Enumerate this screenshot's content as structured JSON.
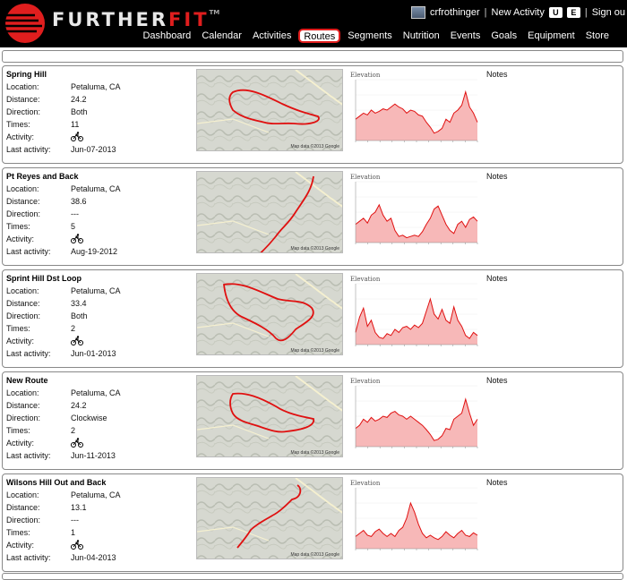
{
  "brand": {
    "part1": "FURTHER",
    "part2": "FIT",
    "tm": "TM"
  },
  "user": {
    "name": "crfrothinger",
    "new_activity": "New Activity",
    "key_u": "U",
    "key_e": "E",
    "sign_out": "Sign ou"
  },
  "nav": [
    {
      "label": "Dashboard",
      "active": false
    },
    {
      "label": "Calendar",
      "active": false
    },
    {
      "label": "Activities",
      "active": false
    },
    {
      "label": "Routes",
      "active": true
    },
    {
      "label": "Segments",
      "active": false
    },
    {
      "label": "Nutrition",
      "active": false
    },
    {
      "label": "Events",
      "active": false
    },
    {
      "label": "Goals",
      "active": false
    },
    {
      "label": "Equipment",
      "active": false
    },
    {
      "label": "Store",
      "active": false
    }
  ],
  "labels": {
    "location": "Location:",
    "distance": "Distance:",
    "direction": "Direction:",
    "times": "Times:",
    "activity": "Activity:",
    "last_activity": "Last activity:",
    "notes": "Notes",
    "elevation": "Elevation",
    "map_credit": "Map data ©2013 Google"
  },
  "routes": [
    {
      "name": "Spring Hill",
      "location": "Petaluma, CA",
      "distance": "24.2",
      "direction": "Both",
      "times": "11",
      "activity_icon": "bicycle-icon",
      "last_activity": "Jun-07-2013",
      "elevation": [
        0.35,
        0.4,
        0.45,
        0.42,
        0.5,
        0.45,
        0.48,
        0.52,
        0.5,
        0.55,
        0.6,
        0.55,
        0.52,
        0.45,
        0.5,
        0.48,
        0.42,
        0.4,
        0.3,
        0.22,
        0.12,
        0.15,
        0.2,
        0.35,
        0.3,
        0.45,
        0.5,
        0.58,
        0.8,
        0.55,
        0.45,
        0.3
      ]
    },
    {
      "name": "Pt Reyes and Back",
      "location": "Petaluma, CA",
      "distance": "38.6",
      "direction": "---",
      "times": "5",
      "activity_icon": "bicycle-icon",
      "last_activity": "Aug-19-2012",
      "elevation": [
        0.3,
        0.35,
        0.4,
        0.32,
        0.45,
        0.5,
        0.62,
        0.45,
        0.35,
        0.4,
        0.2,
        0.1,
        0.12,
        0.08,
        0.1,
        0.12,
        0.1,
        0.18,
        0.3,
        0.4,
        0.55,
        0.6,
        0.45,
        0.3,
        0.2,
        0.15,
        0.3,
        0.35,
        0.25,
        0.38,
        0.42,
        0.35
      ]
    },
    {
      "name": "Sprint Hill Dst Loop",
      "location": "Petaluma, CA",
      "distance": "33.4",
      "direction": "Both",
      "times": "2",
      "activity_icon": "bicycle-icon",
      "last_activity": "Jun-01-2013",
      "elevation": [
        0.2,
        0.45,
        0.6,
        0.3,
        0.4,
        0.2,
        0.12,
        0.1,
        0.18,
        0.15,
        0.25,
        0.2,
        0.28,
        0.3,
        0.25,
        0.32,
        0.28,
        0.35,
        0.55,
        0.75,
        0.5,
        0.42,
        0.58,
        0.4,
        0.35,
        0.62,
        0.4,
        0.3,
        0.15,
        0.1,
        0.2,
        0.15
      ]
    },
    {
      "name": "New Route",
      "location": "Petaluma, CA",
      "distance": "24.2",
      "direction": "Clockwise",
      "times": "2",
      "activity_icon": "bicycle-icon",
      "last_activity": "Jun-11-2013",
      "elevation": [
        0.3,
        0.35,
        0.45,
        0.4,
        0.48,
        0.42,
        0.45,
        0.5,
        0.48,
        0.55,
        0.58,
        0.52,
        0.5,
        0.45,
        0.5,
        0.45,
        0.4,
        0.35,
        0.28,
        0.2,
        0.1,
        0.12,
        0.18,
        0.3,
        0.28,
        0.45,
        0.5,
        0.55,
        0.78,
        0.55,
        0.35,
        0.45
      ]
    },
    {
      "name": "Wilsons Hill Out and Back",
      "location": "Petaluma, CA",
      "distance": "13.1",
      "direction": "---",
      "times": "1",
      "activity_icon": "bicycle-icon",
      "last_activity": "Jun-04-2013",
      "elevation": [
        0.2,
        0.25,
        0.3,
        0.22,
        0.2,
        0.28,
        0.32,
        0.25,
        0.2,
        0.25,
        0.2,
        0.3,
        0.35,
        0.5,
        0.75,
        0.6,
        0.4,
        0.25,
        0.18,
        0.22,
        0.18,
        0.15,
        0.2,
        0.28,
        0.22,
        0.18,
        0.25,
        0.3,
        0.22,
        0.2,
        0.26,
        0.22
      ]
    }
  ]
}
